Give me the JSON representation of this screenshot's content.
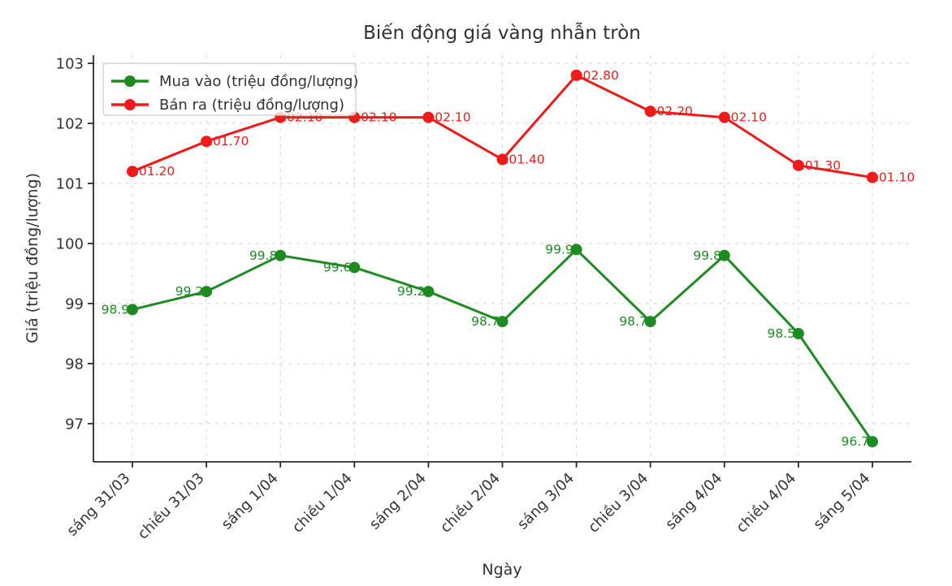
{
  "chart_data": {
    "type": "line",
    "title": "Biến động giá vàng nhẫn tròn",
    "xlabel": "Ngày",
    "ylabel": "Giá (triệu đồng/lượng)",
    "categories": [
      "sáng 31/03",
      "chiều 31/03",
      "sáng 1/04",
      "chiều 1/04",
      "sáng 2/04",
      "chiều 2/04",
      "sáng 3/04",
      "chiều 3/04",
      "sáng 4/04",
      "chiều 4/04",
      "sáng 5/04"
    ],
    "series": [
      {
        "name": "Mua vào (triệu đồng/lượng)",
        "color": "#1e8b22",
        "values": [
          98.9,
          99.2,
          99.8,
          99.6,
          99.2,
          98.7,
          99.9,
          98.7,
          99.8,
          98.5,
          96.7
        ],
        "value_labels": [
          "98.90",
          "99.20",
          "99.80",
          "99.60",
          "99.20",
          "98.70",
          "99.90",
          "98.70",
          "99.80",
          "98.50",
          "96.70"
        ],
        "label_side": "left"
      },
      {
        "name": "Bán ra (triệu đồng/lượng)",
        "color": "#ef1a1a",
        "values": [
          101.2,
          101.7,
          102.1,
          102.1,
          102.1,
          101.4,
          102.8,
          102.2,
          102.1,
          101.3,
          101.1
        ],
        "value_labels": [
          "101.20",
          "101.70",
          "102.10",
          "102.10",
          "102.10",
          "101.40",
          "102.80",
          "102.20",
          "102.10",
          "101.30",
          "101.10"
        ],
        "label_side": "right"
      }
    ],
    "yticks": [
      97,
      98,
      99,
      100,
      101,
      102,
      103
    ],
    "ylim": [
      96.4,
      103.1
    ],
    "grid": true,
    "grid_style": "dashed",
    "legend_position": "upper left",
    "marker": "circle"
  },
  "colors": {
    "grid": "#d9d9d9",
    "spine": "#2b2b2b",
    "tick": "#2b2b2b",
    "text": "#333333",
    "legend_border": "#cccccc",
    "legend_bg": "#ffffff",
    "background": "#ffffff"
  }
}
